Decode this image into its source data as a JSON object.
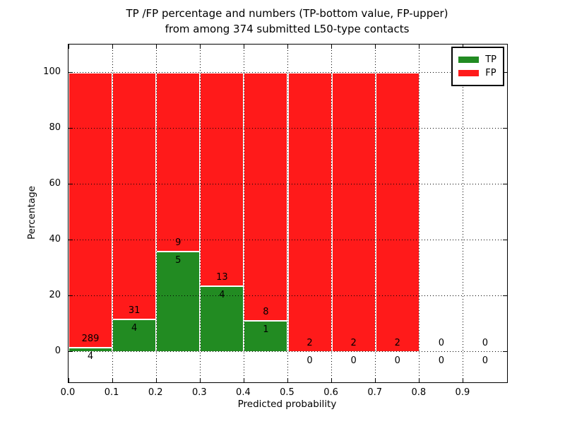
{
  "chart_data": {
    "type": "bar",
    "stacked": true,
    "title_line1": "TP /FP percentage and numbers (TP-bottom value, FP-upper)",
    "title_line2": "from among 374 submitted L50-type contacts",
    "xlabel": "Predicted probability",
    "ylabel": "Percentage",
    "xlim": [
      0.0,
      1.0
    ],
    "ylim": [
      -11,
      110
    ],
    "grid": "dotted-black",
    "legend_position": "upper right",
    "x_tick_labels": [
      "0.0",
      "0.1",
      "0.2",
      "0.3",
      "0.4",
      "0.5",
      "0.6",
      "0.7",
      "0.8",
      "0.9"
    ],
    "y_tick_labels": [
      "0",
      "20",
      "40",
      "60",
      "80",
      "100"
    ],
    "bin_width": 0.1,
    "series": [
      {
        "name": "TP",
        "color": "#228b22"
      },
      {
        "name": "FP",
        "color": "#ff1a1a"
      }
    ],
    "bins": [
      {
        "x_start": 0.0,
        "tp": 4,
        "fp": 289
      },
      {
        "x_start": 0.1,
        "tp": 4,
        "fp": 31
      },
      {
        "x_start": 0.2,
        "tp": 5,
        "fp": 9
      },
      {
        "x_start": 0.3,
        "tp": 4,
        "fp": 13
      },
      {
        "x_start": 0.4,
        "tp": 1,
        "fp": 8
      },
      {
        "x_start": 0.5,
        "tp": 0,
        "fp": 2
      },
      {
        "x_start": 0.6,
        "tp": 0,
        "fp": 2
      },
      {
        "x_start": 0.7,
        "tp": 0,
        "fp": 2
      },
      {
        "x_start": 0.8,
        "tp": 0,
        "fp": 0
      },
      {
        "x_start": 0.9,
        "tp": 0,
        "fp": 0
      }
    ],
    "colors": {
      "tp": "#228b22",
      "fp": "#ff1a1a",
      "bar_edge": "#ffffff",
      "grid": "#000000",
      "axes": "#000000",
      "background": "#ffffff"
    }
  }
}
